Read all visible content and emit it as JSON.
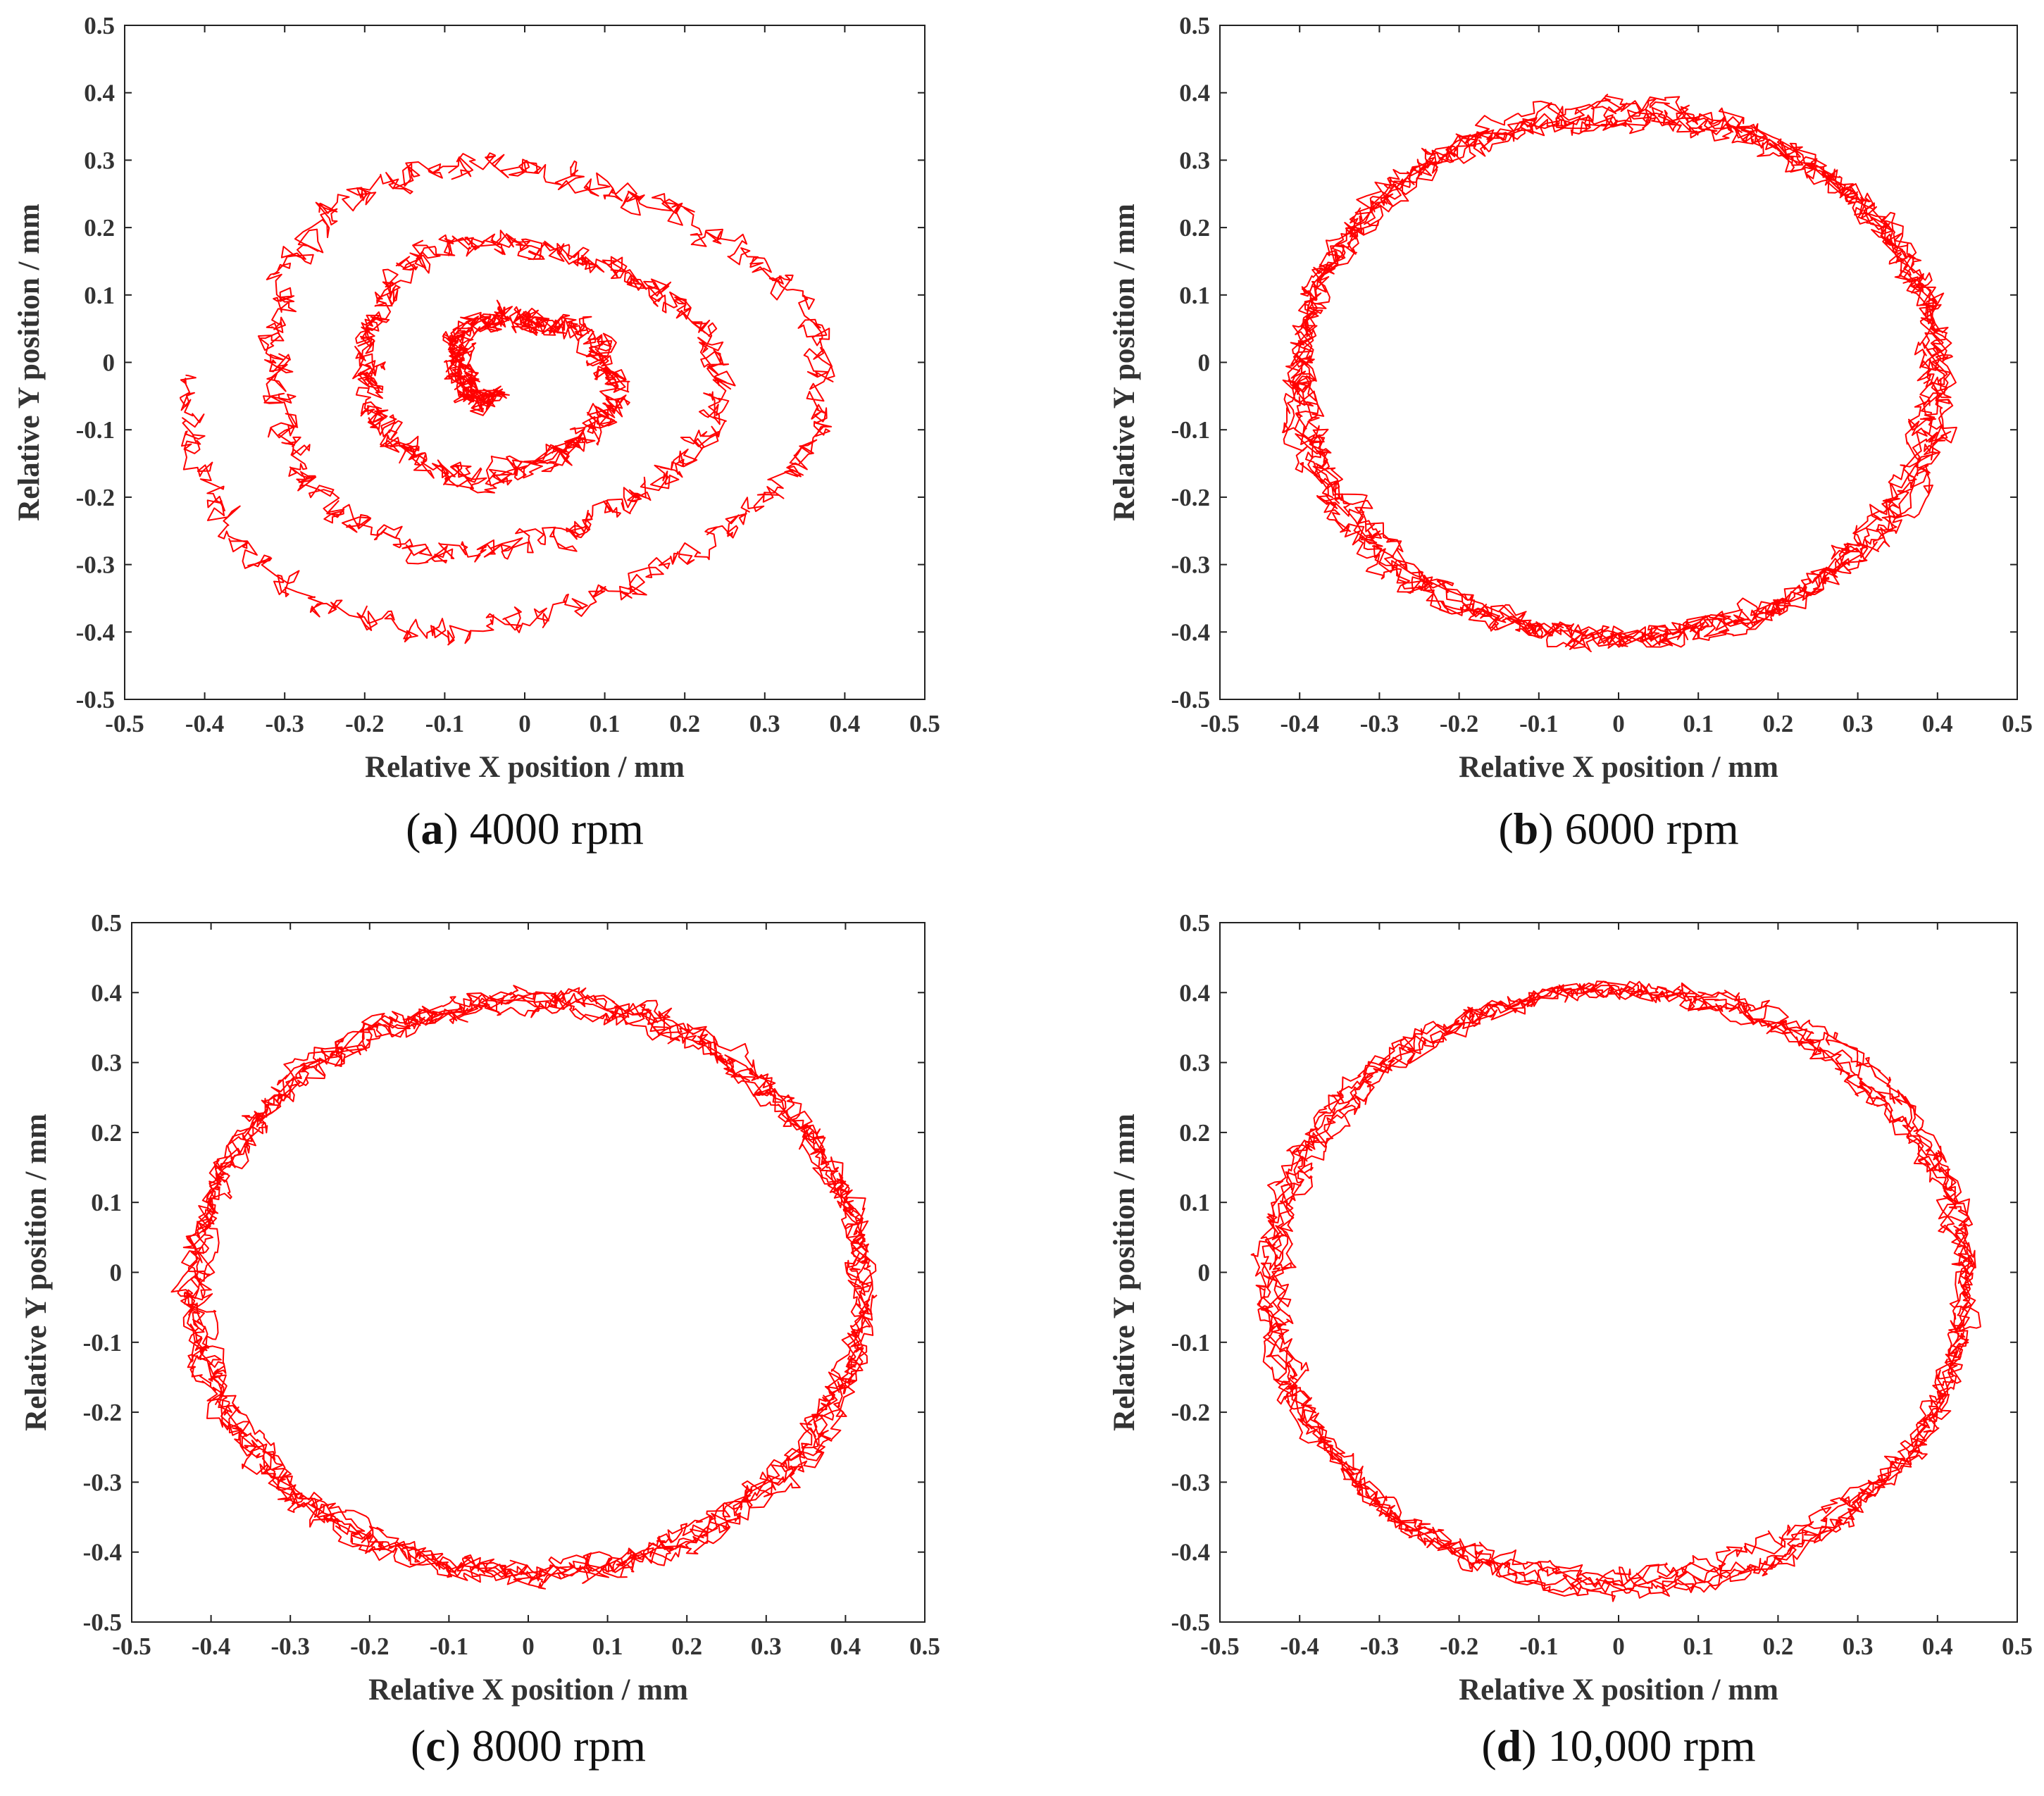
{
  "colors": {
    "trace": "#ff0000",
    "axis": "#222222",
    "text": "#333333"
  },
  "chart_data": [
    {
      "type": "line",
      "panel_letter": "a",
      "caption": "4000 rpm",
      "xlabel": "Relative X position / mm",
      "ylabel": "Relative Y position / mm",
      "xlim": [
        -0.5,
        0.5
      ],
      "ylim": [
        -0.5,
        0.5
      ],
      "xticks": [
        "-0.5",
        "-0.4",
        "-0.3",
        "-0.2",
        "-0.1",
        "0",
        "0.1",
        "0.2",
        "0.3",
        "0.4",
        "0.5"
      ],
      "yticks": [
        "0.5",
        "0.4",
        "0.3",
        "0.2",
        "0.1",
        "0",
        "-0.1",
        "-0.2",
        "-0.3",
        "-0.4",
        "-0.5"
      ],
      "grid": false,
      "trajectory": {
        "shape": "spiral",
        "center": [
          -0.02,
          -0.02
        ],
        "start_radius": 0.43,
        "end_radius": 0.04,
        "turns": 3.2,
        "aspect_y": 0.92,
        "noise": 0.014,
        "seed": 11
      }
    },
    {
      "type": "line",
      "panel_letter": "b",
      "caption": "6000 rpm",
      "xlabel": "Relative X position / mm",
      "ylabel": "Relative Y position / mm",
      "xlim": [
        -0.5,
        0.5
      ],
      "ylim": [
        -0.5,
        0.5
      ],
      "xticks": [
        "-0.5",
        "-0.4",
        "-0.3",
        "-0.2",
        "-0.1",
        "0",
        "0.1",
        "0.2",
        "0.3",
        "0.4",
        "0.5"
      ],
      "yticks": [
        "0.5",
        "0.4",
        "0.3",
        "0.2",
        "0.1",
        "0",
        "-0.1",
        "-0.2",
        "-0.3",
        "-0.4",
        "-0.5"
      ],
      "grid": false,
      "trajectory": {
        "shape": "orbit",
        "center": [
          0.0,
          -0.02
        ],
        "radius_x": 0.4,
        "radius_y": 0.39,
        "turns": 6,
        "noise": 0.012,
        "seed": 23
      }
    },
    {
      "type": "line",
      "panel_letter": "c",
      "caption": "8000 rpm",
      "xlabel": "Relative X position / mm",
      "ylabel": "Relative Y position / mm",
      "xlim": [
        -0.5,
        0.5
      ],
      "ylim": [
        -0.5,
        0.5
      ],
      "xticks": [
        "-0.5",
        "-0.4",
        "-0.3",
        "-0.2",
        "-0.1",
        "0",
        "0.1",
        "0.2",
        "0.3",
        "0.4",
        "0.5"
      ],
      "yticks": [
        "0.5",
        "0.4",
        "0.3",
        "0.2",
        "0.1",
        "0",
        "-0.1",
        "-0.2",
        "-0.3",
        "-0.4",
        "-0.5"
      ],
      "grid": false,
      "trajectory": {
        "shape": "orbit",
        "center": [
          0.0,
          -0.02
        ],
        "radius_x": 0.42,
        "radius_y": 0.41,
        "turns": 6,
        "noise": 0.011,
        "seed": 37
      }
    },
    {
      "type": "line",
      "panel_letter": "d",
      "caption": "10,000 rpm",
      "xlabel": "Relative X position / mm",
      "ylabel": "Relative Y position / mm",
      "xlim": [
        -0.5,
        0.5
      ],
      "ylim": [
        -0.5,
        0.5
      ],
      "xticks": [
        "-0.5",
        "-0.4",
        "-0.3",
        "-0.2",
        "-0.1",
        "0",
        "0.1",
        "0.2",
        "0.3",
        "0.4",
        "0.5"
      ],
      "yticks": [
        "0.5",
        "0.4",
        "0.3",
        "0.2",
        "0.1",
        "0",
        "-0.1",
        "-0.2",
        "-0.3",
        "-0.4",
        "-0.5"
      ],
      "grid": false,
      "trajectory": {
        "shape": "orbit",
        "center": [
          0.0,
          -0.02
        ],
        "radius_x": 0.435,
        "radius_y": 0.425,
        "turns": 6,
        "noise": 0.01,
        "seed": 51
      }
    }
  ]
}
